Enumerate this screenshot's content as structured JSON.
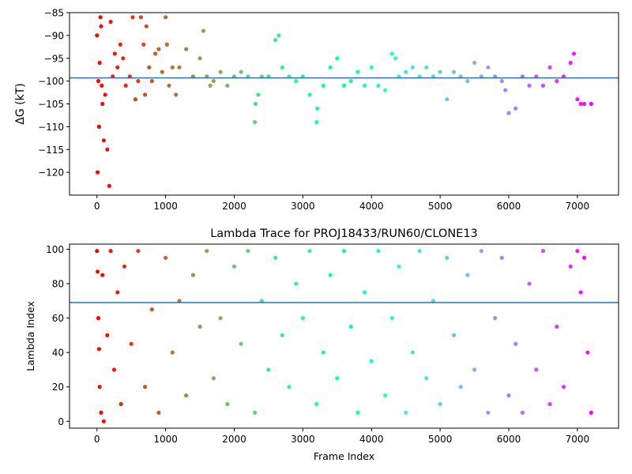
{
  "chart_data": [
    {
      "type": "scatter",
      "title": "",
      "xlabel": "",
      "ylabel": "ΔG (kT)",
      "xlim": [
        -400,
        7600
      ],
      "ylim": [
        -125,
        -85
      ],
      "xticks": [
        0,
        1000,
        2000,
        3000,
        4000,
        5000,
        6000,
        7000
      ],
      "yticks": [
        -120,
        -115,
        -110,
        -105,
        -100,
        -95,
        -90,
        -85
      ],
      "ytick_labels": [
        "−120",
        "−115",
        "−110",
        "−105",
        "−100",
        "−95",
        "−90",
        "−85"
      ],
      "hline": -99.3,
      "hline_color": "#1f77b4",
      "colormap": "rainbow (red at frame 0 → violet at frame ~7200)",
      "grid": false,
      "legend": "none",
      "series": [
        {
          "x": [
            0,
            10,
            20,
            30,
            40,
            50,
            60,
            70,
            80,
            100,
            120,
            150,
            180,
            200,
            230,
            260,
            300,
            340,
            380,
            420,
            480,
            520,
            560,
            600,
            640,
            680,
            700,
            720,
            760,
            800,
            850,
            900,
            950,
            1000,
            1020,
            1050,
            1100,
            1150,
            1200,
            1300,
            1400,
            1500,
            1550,
            1600,
            1650,
            1700,
            1800,
            1900,
            2000,
            2100,
            2200,
            2300,
            2310,
            2350,
            2400,
            2500,
            2600,
            2650,
            2700,
            2800,
            2900,
            3000,
            3100,
            3200,
            3210,
            3300,
            3400,
            3500,
            3600,
            3700,
            3800,
            3900,
            4000,
            4100,
            4200,
            4300,
            4350,
            4400,
            4500,
            4600,
            4700,
            4800,
            4900,
            5000,
            5100,
            5200,
            5300,
            5400,
            5500,
            5600,
            5700,
            5800,
            5900,
            5950,
            6000,
            6100,
            6200,
            6300,
            6400,
            6500,
            6600,
            6700,
            6800,
            6900,
            6950,
            7000,
            7050,
            7100,
            7200
          ],
          "y": [
            -90,
            -120,
            -100,
            -110,
            -96,
            -86,
            -88,
            -101,
            -105,
            -113,
            -103,
            -115,
            -123,
            -87,
            -99,
            -94,
            -97,
            -92,
            -95,
            -101,
            -99,
            -86,
            -104,
            -100,
            -86,
            -92,
            -103,
            -88,
            -97,
            -100,
            -94,
            -93,
            -98,
            -86,
            -92,
            -101,
            -97,
            -103,
            -97,
            -93,
            -99,
            -95,
            -89,
            -99,
            -101,
            -100,
            -98,
            -101,
            -99,
            -98,
            -99,
            -109,
            -105,
            -103,
            -99,
            -99,
            -91,
            -90,
            -97,
            -99,
            -100,
            -99,
            -103,
            -109,
            -106,
            -101,
            -97,
            -95,
            -101,
            -100,
            -98,
            -101,
            -97,
            -101,
            -102,
            -94,
            -95,
            -99,
            -98,
            -97,
            -99,
            -97,
            -99,
            -98,
            -104,
            -98,
            -99,
            -100,
            -96,
            -99,
            -97,
            -99,
            -100,
            -102,
            -107,
            -106,
            -99,
            -101,
            -99,
            -101,
            -97,
            -100,
            -99,
            -96,
            -94,
            -104,
            -105,
            -105,
            -105
          ]
        }
      ]
    },
    {
      "type": "scatter",
      "title": "Lambda Trace for PROJ18433/RUN60/CLONE13",
      "xlabel": "Frame Index",
      "ylabel": "Lambda Index",
      "xlim": [
        -400,
        7600
      ],
      "ylim": [
        -4,
        103
      ],
      "xticks": [
        0,
        1000,
        2000,
        3000,
        4000,
        5000,
        6000,
        7000
      ],
      "yticks": [
        0,
        20,
        40,
        60,
        80,
        100
      ],
      "ytick_labels": [
        "0",
        "20",
        "40",
        "60",
        "80",
        "100"
      ],
      "hline": 69,
      "hline_color": "#1f77b4",
      "colormap": "rainbow (red at frame 0 → violet at frame ~7200)",
      "grid": false,
      "legend": "none",
      "series": [
        {
          "x": [
            0,
            10,
            20,
            30,
            40,
            60,
            80,
            100,
            150,
            200,
            250,
            300,
            350,
            400,
            500,
            600,
            700,
            800,
            900,
            1000,
            1100,
            1200,
            1300,
            1400,
            1500,
            1600,
            1700,
            1800,
            1900,
            2000,
            2100,
            2200,
            2300,
            2400,
            2500,
            2600,
            2700,
            2800,
            2900,
            3000,
            3100,
            3200,
            3300,
            3400,
            3500,
            3600,
            3700,
            3800,
            3900,
            4000,
            4100,
            4200,
            4300,
            4400,
            4500,
            4600,
            4700,
            4800,
            4900,
            5000,
            5100,
            5200,
            5300,
            5400,
            5500,
            5600,
            5700,
            5800,
            5900,
            6000,
            6100,
            6200,
            6300,
            6400,
            6500,
            6600,
            6700,
            6800,
            6900,
            7000,
            7050,
            7100,
            7150,
            7200
          ],
          "y": [
            99,
            87,
            60,
            42,
            20,
            5,
            85,
            0,
            50,
            99,
            30,
            75,
            10,
            90,
            45,
            99,
            20,
            65,
            5,
            95,
            40,
            70,
            15,
            85,
            55,
            99,
            25,
            60,
            10,
            90,
            45,
            99,
            5,
            70,
            30,
            95,
            50,
            20,
            80,
            60,
            99,
            10,
            40,
            85,
            25,
            99,
            55,
            5,
            75,
            35,
            99,
            15,
            60,
            90,
            5,
            40,
            99,
            25,
            70,
            10,
            95,
            50,
            20,
            85,
            30,
            99,
            5,
            60,
            95,
            15,
            45,
            5,
            80,
            30,
            99,
            10,
            55,
            20,
            90,
            99,
            75,
            95,
            40,
            5
          ]
        }
      ]
    }
  ]
}
